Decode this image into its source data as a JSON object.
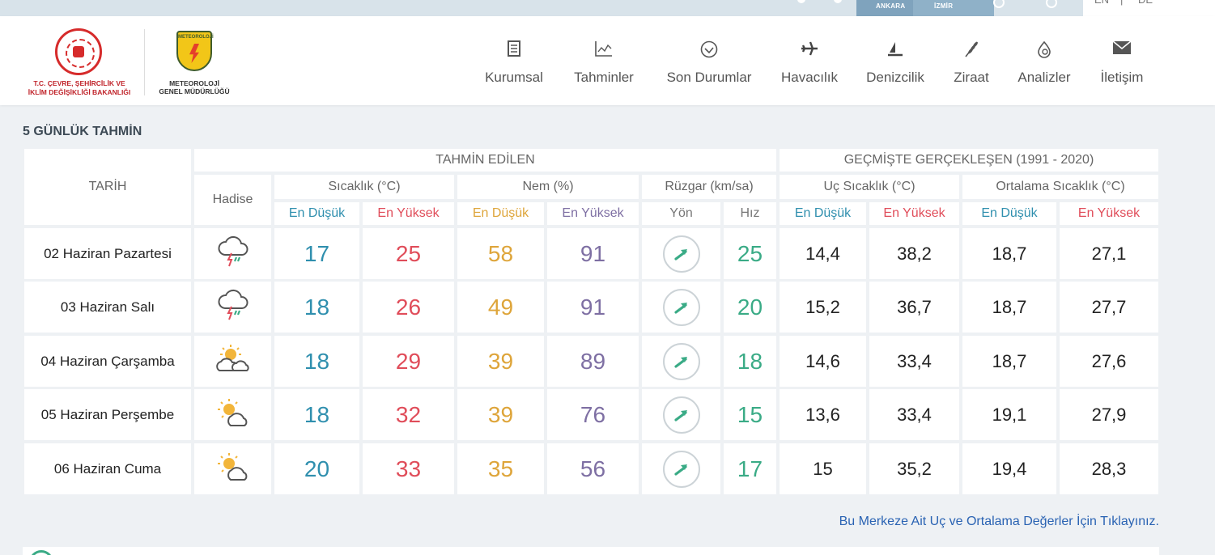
{
  "topbar": {
    "cities": [
      "ANKARA",
      "İZMİR"
    ],
    "langs": [
      "EN",
      "|",
      "DE"
    ]
  },
  "header": {
    "logo_ministry": [
      "T.C. ÇEVRE, ŞEHİRCİLİK VE",
      "İKLİM DEĞİŞİKLİĞİ BAKANLIĞI"
    ],
    "logo_mgm": [
      "METEOROLOJİ",
      "GENEL MÜDÜRLÜĞÜ"
    ],
    "nav": [
      {
        "label": "Kurumsal",
        "icon": "document-icon"
      },
      {
        "label": "Tahminler",
        "icon": "chart-icon"
      },
      {
        "label": "Son Durumlar",
        "icon": "check-circle-icon"
      },
      {
        "label": "Havacılık",
        "icon": "airplane-icon"
      },
      {
        "label": "Denizcilik",
        "icon": "sailboat-icon"
      },
      {
        "label": "Ziraat",
        "icon": "wheat-icon"
      },
      {
        "label": "Analizler",
        "icon": "analysis-icon"
      },
      {
        "label": "İletişim",
        "icon": "mail-icon"
      }
    ]
  },
  "forecast": {
    "title": "5 GÜNLÜK TAHMİN",
    "group_predicted": "TAHMİN EDİLEN",
    "group_history": "GEÇMİŞTE GERÇEKLEŞEN (1991 - 2020)",
    "col_date": "TARİH",
    "col_event": "Hadise",
    "col_temp": "Sıcaklık (°C)",
    "col_humidity": "Nem (%)",
    "col_wind": "Rüzgar (km/sa)",
    "col_extreme": "Uç Sıcaklık (°C)",
    "col_avg": "Ortalama Sıcaklık (°C)",
    "min": "En Düşük",
    "max": "En Yüksek",
    "dir": "Yön",
    "speed": "Hız",
    "rows": [
      {
        "date": "02 Haziran Pazartesi",
        "icon": "thunderstorm-icon",
        "tmin": "17",
        "tmax": "25",
        "hmin": "58",
        "hmax": "91",
        "wind": "25",
        "xmin": "14,4",
        "xmax": "38,2",
        "amin": "18,7",
        "amax": "27,1"
      },
      {
        "date": "03 Haziran Salı",
        "icon": "thunderstorm-icon",
        "tmin": "18",
        "tmax": "26",
        "hmin": "49",
        "hmax": "91",
        "wind": "20",
        "xmin": "15,2",
        "xmax": "36,7",
        "amin": "18,7",
        "amax": "27,7"
      },
      {
        "date": "04 Haziran Çarşamba",
        "icon": "partly-cloudy-icon",
        "tmin": "18",
        "tmax": "29",
        "hmin": "39",
        "hmax": "89",
        "wind": "18",
        "xmin": "14,6",
        "xmax": "33,4",
        "amin": "18,7",
        "amax": "27,6"
      },
      {
        "date": "05 Haziran Perşembe",
        "icon": "sun-cloud-icon",
        "tmin": "18",
        "tmax": "32",
        "hmin": "39",
        "hmax": "76",
        "wind": "15",
        "xmin": "13,6",
        "xmax": "33,4",
        "amin": "19,1",
        "amax": "27,9"
      },
      {
        "date": "06 Haziran Cuma",
        "icon": "sun-cloud-icon",
        "tmin": "20",
        "tmax": "33",
        "hmin": "35",
        "hmax": "56",
        "wind": "17",
        "xmin": "15",
        "xmax": "35,2",
        "amin": "19,4",
        "amax": "28,3"
      }
    ],
    "link": "Bu Merkeze Ait Uç ve Ortalama Değerler İçin Tıklayınız."
  }
}
